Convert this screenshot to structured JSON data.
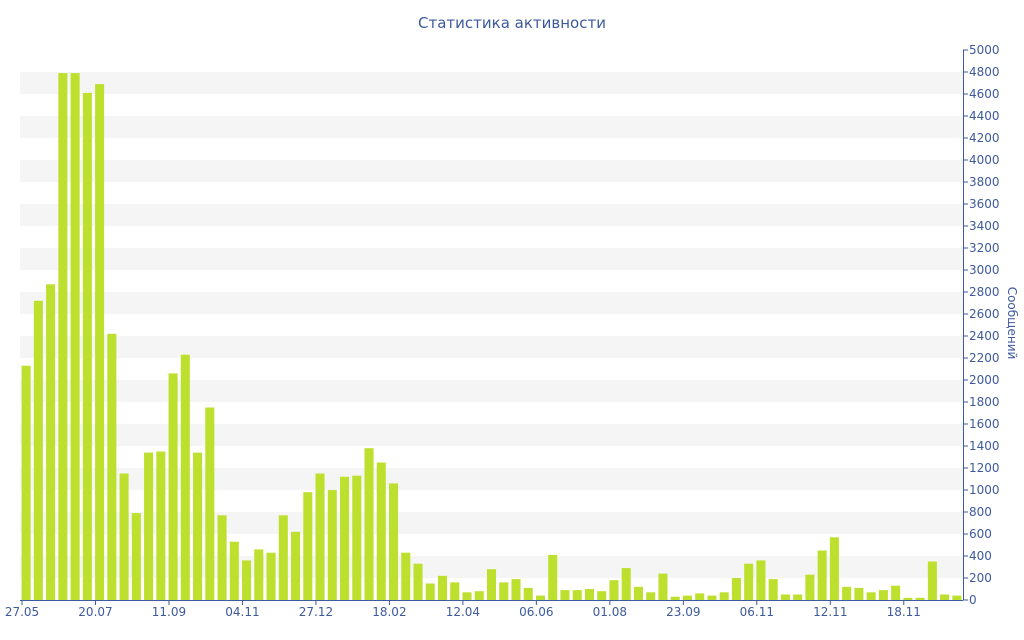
{
  "title": "Статистика активности",
  "chart_data": {
    "type": "bar",
    "title": "Статистика активности",
    "xlabel": "",
    "ylabel": "Сообщений",
    "ylim": [
      0,
      5000
    ],
    "ytick_step": 200,
    "x_tick_labels": [
      "27.05",
      "20.07",
      "11.09",
      "04.11",
      "27.12",
      "18.02",
      "12.04",
      "06.06",
      "01.08",
      "23.09",
      "06.11",
      "12.11",
      "18.11"
    ],
    "values": [
      2130,
      2720,
      2870,
      4790,
      4790,
      4610,
      4690,
      2420,
      1150,
      790,
      1340,
      1350,
      2060,
      2230,
      1340,
      1750,
      770,
      530,
      360,
      460,
      430,
      770,
      620,
      980,
      1150,
      1000,
      1120,
      1130,
      1380,
      1250,
      1060,
      430,
      330,
      150,
      220,
      160,
      70,
      80,
      280,
      160,
      190,
      110,
      40,
      410,
      90,
      90,
      100,
      80,
      180,
      290,
      120,
      70,
      240,
      30,
      40,
      60,
      40,
      70,
      200,
      330,
      360,
      190,
      50,
      50,
      230,
      450,
      570,
      120,
      110,
      70,
      90,
      130,
      20,
      20,
      350,
      50,
      40
    ],
    "bar_color": "#bde02e",
    "grid": "alternating horizontal bands",
    "legend": "none"
  }
}
